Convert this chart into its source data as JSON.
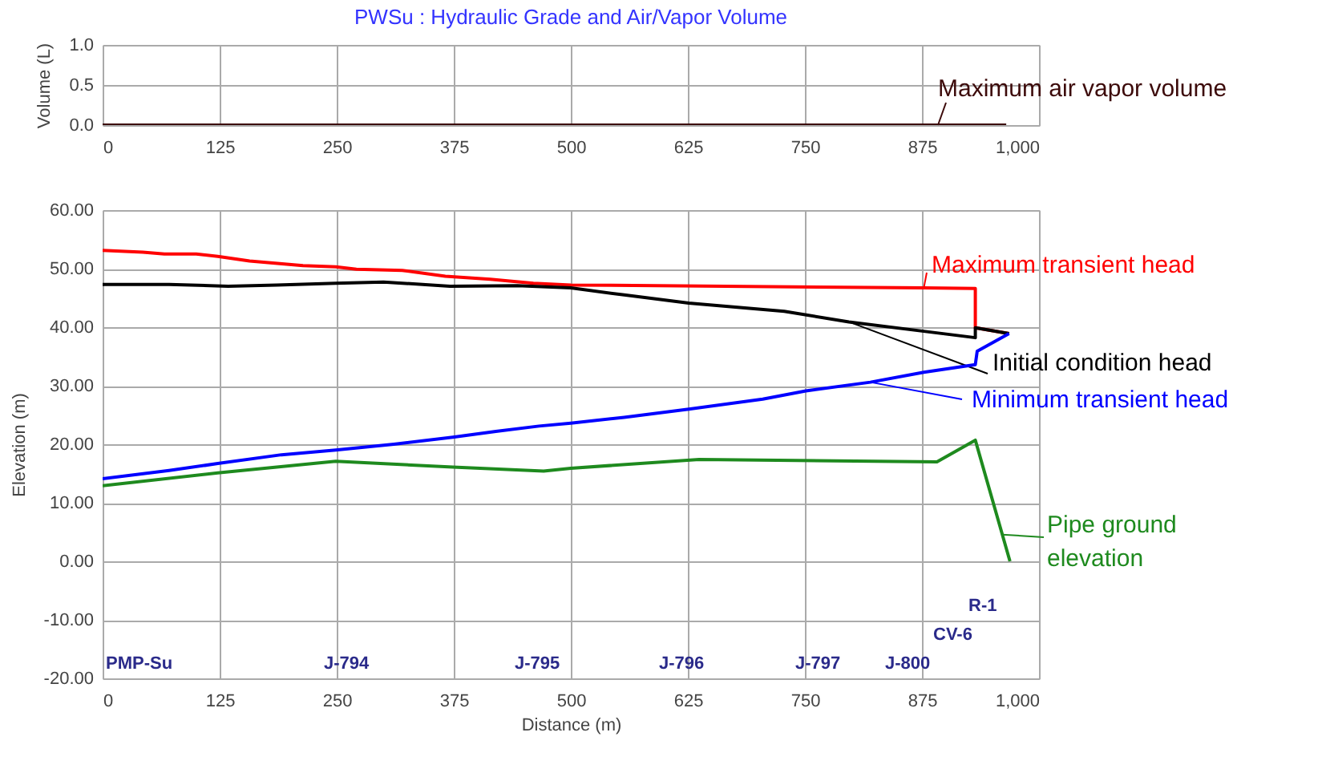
{
  "chart_data": [
    {
      "type": "line",
      "title": "PWSu : Hydraulic Grade and Air/Vapor Volume",
      "ylabel": "Volume (L)",
      "grid": true,
      "legend": "right",
      "xlim": [
        0,
        1000
      ],
      "xticks": [
        0,
        125,
        250,
        375,
        500,
        625,
        750,
        875,
        {
          "value": 1000,
          "label": "1,000"
        }
      ],
      "ylim": [
        0,
        1
      ],
      "yticks": [
        {
          "value": 0,
          "label": "0.0"
        },
        {
          "value": 0.5,
          "label": "0.5"
        },
        {
          "value": 1,
          "label": "1.0"
        }
      ],
      "series": [
        {
          "name": "Maximum air vapor volume",
          "color": "#3c0a0a",
          "x": [
            0,
            965
          ],
          "values": [
            0,
            0
          ]
        }
      ]
    },
    {
      "type": "line",
      "xlabel": "Distance (m)",
      "ylabel": "Elevation (m)",
      "grid": true,
      "legend": "right",
      "xlim": [
        0,
        1000
      ],
      "xticks": [
        0,
        125,
        250,
        375,
        500,
        625,
        750,
        875,
        {
          "value": 1000,
          "label": "1,000"
        }
      ],
      "ylim": [
        -20,
        60
      ],
      "yticks": [
        {
          "value": -20,
          "label": "-20.00"
        },
        {
          "value": -10,
          "label": "-10.00"
        },
        {
          "value": 0,
          "label": "0.00"
        },
        {
          "value": 10,
          "label": "10.00"
        },
        {
          "value": 20,
          "label": "20.00"
        },
        {
          "value": 30,
          "label": "30.00"
        },
        {
          "value": 40,
          "label": "40.00"
        },
        {
          "value": 50,
          "label": "50.00"
        },
        {
          "value": 60,
          "label": "60.00"
        }
      ],
      "series": [
        {
          "name": "Maximum transient head",
          "color": "#ff0000",
          "x": [
            0,
            43,
            66,
            100,
            123,
            157,
            214,
            249,
            271,
            320,
            366,
            414,
            460,
            500,
            877,
            932,
            932,
            968
          ],
          "values": [
            53.1,
            52.8,
            52.5,
            52.5,
            52.1,
            51.3,
            50.5,
            50.3,
            49.9,
            49.7,
            48.7,
            48.2,
            47.5,
            47.2,
            46.7,
            46.6,
            39.9,
            38.9
          ]
        },
        {
          "name": "Initial condition head",
          "color": "#000000",
          "x": [
            0,
            71,
            134,
            186,
            249,
            300,
            371,
            443,
            500,
            557,
            626,
            728,
            797,
            877,
            932,
            932,
            968
          ],
          "values": [
            47.3,
            47.3,
            47.0,
            47.2,
            47.5,
            47.7,
            47.0,
            47.1,
            46.7,
            45.5,
            44.1,
            42.7,
            40.9,
            39.3,
            38.2,
            39.9,
            38.9
          ]
        },
        {
          "name": "Minimum transient head",
          "color": "#0000ff",
          "x": [
            0,
            71,
            123,
            191,
            249,
            311,
            374,
            420,
            466,
            500,
            557,
            626,
            705,
            751,
            820,
            877,
            932,
            934,
            968
          ],
          "values": [
            14.1,
            15.5,
            16.7,
            18.2,
            19.0,
            20.0,
            21.2,
            22.2,
            23.1,
            23.6,
            24.6,
            26.0,
            27.7,
            29.1,
            30.6,
            32.3,
            33.6,
            35.9,
            38.9
          ]
        },
        {
          "name": "Pipe ground elevation",
          "color": "#1e8a1e",
          "x": [
            0,
            123,
            249,
            374,
            471,
            500,
            637,
            891,
            932,
            969
          ],
          "values": [
            12.9,
            15.1,
            17.1,
            16.1,
            15.4,
            15.9,
            17.4,
            17.0,
            20.7,
            0.0
          ]
        }
      ],
      "annotations": [
        "PMP-Su",
        "J-794",
        "J-795",
        "J-796",
        "J-797",
        "J-800",
        "CV-6",
        "R-1"
      ]
    }
  ]
}
